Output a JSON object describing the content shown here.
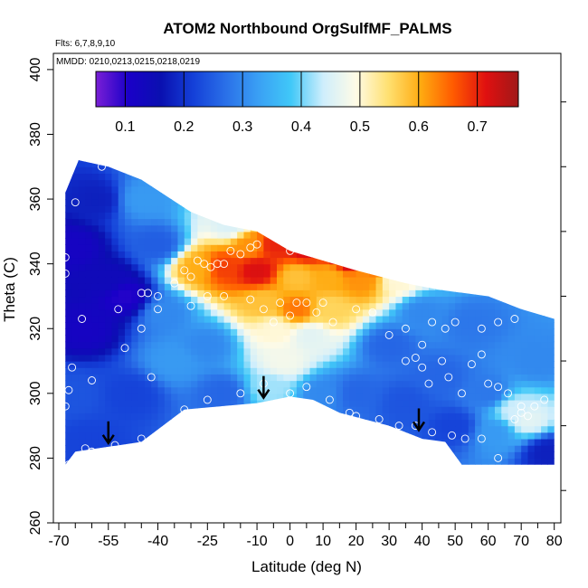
{
  "chart_data": {
    "type": "heatmap",
    "title": "ATOM2 Northbound OrgSulfMF_PALMS",
    "annotations": {
      "flights": "Flts: 6,7,8,9,10",
      "dates": "MMDD: 0210,0213,0215,0218,0219"
    },
    "xlabel": "Latitude (deg N)",
    "ylabel": "Theta (C)",
    "xlim": [
      -70,
      82
    ],
    "ylim": [
      260,
      405
    ],
    "x_tick_labels": [
      "-70",
      "-55",
      "-40",
      "-25",
      "-10",
      "0",
      "10",
      "20",
      "30",
      "40",
      "50",
      "60",
      "70",
      "80"
    ],
    "x_tick_values": [
      -70,
      -55,
      -40,
      -25,
      -10,
      0,
      10,
      20,
      30,
      40,
      50,
      60,
      70,
      80
    ],
    "x_minor_ticks": [
      -65,
      -60,
      -50,
      -45,
      -35,
      -30,
      -20,
      -15,
      -5,
      5,
      15,
      25,
      35,
      45,
      55,
      65,
      75
    ],
    "y_tick_labels": [
      "260",
      "280",
      "300",
      "320",
      "340",
      "360",
      "380",
      "400"
    ],
    "y_tick_values": [
      260,
      280,
      300,
      320,
      340,
      360,
      380,
      400
    ],
    "colorbar": {
      "range": [
        0.05,
        0.77
      ],
      "tick_labels": [
        "0.1",
        "0.2",
        "0.3",
        "0.4",
        "0.5",
        "0.6",
        "0.7"
      ],
      "tick_values": [
        0.1,
        0.2,
        0.3,
        0.4,
        0.5,
        0.6,
        0.7
      ],
      "colors": [
        "#7a1fd6",
        "#1a00c8",
        "#0a10b0",
        "#1440d8",
        "#2a70e8",
        "#3aa0f4",
        "#40c8f8",
        "#cfeefc",
        "#fffbe6",
        "#ffe070",
        "#ffaa10",
        "#ff5a00",
        "#e01010",
        "#a01818"
      ]
    },
    "surface_boundary": [
      [
        -68,
        278
      ],
      [
        -65,
        282
      ],
      [
        -45,
        285
      ],
      [
        -32,
        295
      ],
      [
        -10,
        297
      ],
      [
        0,
        299
      ],
      [
        7,
        298
      ],
      [
        15,
        294
      ],
      [
        30,
        290
      ],
      [
        40,
        286
      ],
      [
        47,
        285
      ],
      [
        52,
        278
      ],
      [
        80,
        278
      ]
    ],
    "top_boundary": [
      [
        -68,
        362
      ],
      [
        -64,
        372
      ],
      [
        -55,
        370
      ],
      [
        -45,
        366
      ],
      [
        -30,
        356
      ],
      [
        -20,
        352
      ],
      [
        -10,
        350
      ],
      [
        0,
        344
      ],
      [
        20,
        338
      ],
      [
        35,
        334
      ],
      [
        45,
        332
      ],
      [
        60,
        330
      ],
      [
        70,
        326
      ],
      [
        80,
        323
      ]
    ],
    "hotspot_points": [
      {
        "x": -18,
        "y": 352,
        "v": 0.45
      },
      {
        "x": -12,
        "y": 346,
        "v": 0.62
      },
      {
        "x": -5,
        "y": 346,
        "v": 0.7
      },
      {
        "x": 5,
        "y": 345,
        "v": 0.72
      },
      {
        "x": 18,
        "y": 342,
        "v": 0.76
      },
      {
        "x": 26,
        "y": 340,
        "v": 0.66
      },
      {
        "x": -28,
        "y": 339,
        "v": 0.6
      },
      {
        "x": -20,
        "y": 339,
        "v": 0.68
      },
      {
        "x": -10,
        "y": 338,
        "v": 0.72
      },
      {
        "x": 2,
        "y": 336,
        "v": 0.58
      },
      {
        "x": 12,
        "y": 336,
        "v": 0.6
      },
      {
        "x": 22,
        "y": 335,
        "v": 0.62
      },
      {
        "x": 32,
        "y": 335,
        "v": 0.5
      },
      {
        "x": -8,
        "y": 328,
        "v": 0.58
      },
      {
        "x": 2,
        "y": 326,
        "v": 0.64
      },
      {
        "x": 12,
        "y": 326,
        "v": 0.56
      },
      {
        "x": -4,
        "y": 320,
        "v": 0.5
      },
      {
        "x": 6,
        "y": 318,
        "v": 0.46
      },
      {
        "x": -2,
        "y": 310,
        "v": 0.48
      },
      {
        "x": -6,
        "y": 302,
        "v": 0.42
      },
      {
        "x": -40,
        "y": 346,
        "v": 0.25
      },
      {
        "x": -55,
        "y": 335,
        "v": 0.14
      },
      {
        "x": -62,
        "y": 320,
        "v": 0.12
      },
      {
        "x": -50,
        "y": 330,
        "v": 0.1
      },
      {
        "x": -66,
        "y": 345,
        "v": 0.12
      },
      {
        "x": -66,
        "y": 300,
        "v": 0.24
      },
      {
        "x": -48,
        "y": 300,
        "v": 0.22
      },
      {
        "x": -35,
        "y": 310,
        "v": 0.32
      },
      {
        "x": -38,
        "y": 325,
        "v": 0.3
      },
      {
        "x": -25,
        "y": 315,
        "v": 0.3
      },
      {
        "x": 20,
        "y": 300,
        "v": 0.26
      },
      {
        "x": 30,
        "y": 315,
        "v": 0.26
      },
      {
        "x": 45,
        "y": 305,
        "v": 0.26
      },
      {
        "x": 60,
        "y": 300,
        "v": 0.28
      },
      {
        "x": 68,
        "y": 295,
        "v": 0.44
      },
      {
        "x": 72,
        "y": 292,
        "v": 0.46
      },
      {
        "x": 62,
        "y": 288,
        "v": 0.32
      },
      {
        "x": 50,
        "y": 290,
        "v": 0.22
      },
      {
        "x": 75,
        "y": 310,
        "v": 0.3
      },
      {
        "x": 55,
        "y": 322,
        "v": 0.28
      },
      {
        "x": 40,
        "y": 325,
        "v": 0.3
      },
      {
        "x": -20,
        "y": 300,
        "v": 0.26
      },
      {
        "x": 10,
        "y": 300,
        "v": 0.3
      },
      {
        "x": -58,
        "y": 360,
        "v": 0.18
      },
      {
        "x": -45,
        "y": 360,
        "v": 0.32
      },
      {
        "x": 35,
        "y": 297,
        "v": 0.24
      },
      {
        "x": -60,
        "y": 285,
        "v": 0.22
      },
      {
        "x": 78,
        "y": 282,
        "v": 0.18
      }
    ],
    "sample_points": [
      [
        -57,
        370
      ],
      [
        -65,
        359
      ],
      [
        -68,
        342
      ],
      [
        -68,
        337
      ],
      [
        -63,
        323
      ],
      [
        -66,
        308
      ],
      [
        -60,
        304
      ],
      [
        -67,
        301
      ],
      [
        -68,
        296
      ],
      [
        -62,
        283
      ],
      [
        -60,
        282
      ],
      [
        -67,
        278
      ],
      [
        -45,
        331
      ],
      [
        -43,
        331
      ],
      [
        -40,
        330
      ],
      [
        -45,
        320
      ],
      [
        -50,
        314
      ],
      [
        -42,
        305
      ],
      [
        -40,
        326
      ],
      [
        -52,
        326
      ],
      [
        -32,
        338
      ],
      [
        -30,
        336
      ],
      [
        -28,
        341
      ],
      [
        -26,
        340
      ],
      [
        -24,
        339
      ],
      [
        -22,
        340
      ],
      [
        -20,
        340
      ],
      [
        -18,
        344
      ],
      [
        -15,
        343
      ],
      [
        -12,
        345
      ],
      [
        -10,
        346
      ],
      [
        -35,
        334
      ],
      [
        -30,
        327
      ],
      [
        -25,
        330
      ],
      [
        -20,
        330
      ],
      [
        -12,
        329
      ],
      [
        -8,
        326
      ],
      [
        -5,
        322
      ],
      [
        -3,
        328
      ],
      [
        0,
        324
      ],
      [
        2,
        328
      ],
      [
        5,
        328
      ],
      [
        8,
        325
      ],
      [
        10,
        328
      ],
      [
        13,
        322
      ],
      [
        0,
        344
      ],
      [
        8,
        343
      ],
      [
        12,
        344
      ],
      [
        18,
        342
      ],
      [
        22,
        343
      ],
      [
        24,
        342
      ],
      [
        30,
        337
      ],
      [
        35,
        337
      ],
      [
        20,
        326
      ],
      [
        25,
        325
      ],
      [
        30,
        318
      ],
      [
        35,
        320
      ],
      [
        35,
        310
      ],
      [
        40,
        315
      ],
      [
        43,
        322
      ],
      [
        47,
        320
      ],
      [
        50,
        322
      ],
      [
        58,
        320
      ],
      [
        63,
        322
      ],
      [
        68,
        323
      ],
      [
        38,
        311
      ],
      [
        40,
        308
      ],
      [
        42,
        303
      ],
      [
        46,
        310
      ],
      [
        48,
        305
      ],
      [
        52,
        300
      ],
      [
        55,
        309
      ],
      [
        58,
        312
      ],
      [
        60,
        303
      ],
      [
        63,
        302
      ],
      [
        66,
        300
      ],
      [
        70,
        296
      ],
      [
        74,
        296
      ],
      [
        20,
        293
      ],
      [
        27,
        292
      ],
      [
        33,
        290
      ],
      [
        38,
        290
      ],
      [
        43,
        288
      ],
      [
        49,
        287
      ],
      [
        53,
        286
      ],
      [
        58,
        286
      ],
      [
        63,
        280
      ],
      [
        68,
        292
      ],
      [
        70,
        294
      ],
      [
        72,
        293
      ],
      [
        77,
        298
      ],
      [
        -38,
        288
      ],
      [
        -32,
        295
      ],
      [
        -25,
        298
      ],
      [
        -15,
        300
      ],
      [
        -8,
        303
      ],
      [
        0,
        300
      ],
      [
        5,
        302
      ],
      [
        12,
        298
      ],
      [
        18,
        294
      ],
      [
        -45,
        286
      ],
      [
        -53,
        284
      ],
      [
        -62,
        281
      ]
    ],
    "arrows": [
      [
        -55,
        288
      ],
      [
        -8,
        302
      ],
      [
        39,
        292
      ]
    ]
  }
}
